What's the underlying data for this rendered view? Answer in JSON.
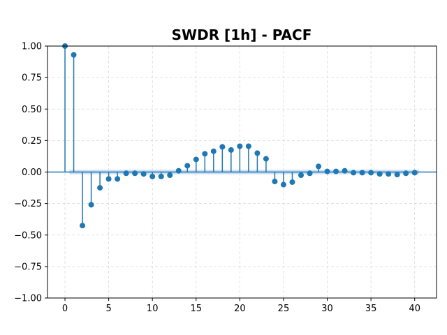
{
  "chart_data": {
    "type": "stem",
    "title": "SWDR [1h] - PACF",
    "xlabel": "",
    "ylabel": "",
    "xlim": [
      -2,
      42.5
    ],
    "ylim": [
      -1.0,
      1.0
    ],
    "xticks": [
      0,
      5,
      10,
      15,
      20,
      25,
      30,
      35,
      40
    ],
    "yticks": [
      -1.0,
      -0.75,
      -0.5,
      -0.25,
      0.0,
      0.25,
      0.5,
      0.75,
      1.0
    ],
    "xtick_labels": [
      "0",
      "5",
      "10",
      "15",
      "20",
      "25",
      "30",
      "35",
      "40"
    ],
    "ytick_labels": [
      "−1.00",
      "−0.75",
      "−0.50",
      "−0.25",
      "0.00",
      "0.25",
      "0.50",
      "0.75",
      "1.00"
    ],
    "grid": true,
    "confidence_band": 0.018,
    "colors": {
      "stem": "#1f77b4",
      "band": "#c8dcee",
      "grid": "#d9d9d9"
    },
    "series": [
      {
        "x": [
          0,
          1,
          2,
          3,
          4,
          5,
          6,
          7,
          8,
          9,
          10,
          11,
          12,
          13,
          14,
          15,
          16,
          17,
          18,
          19,
          20,
          21,
          22,
          23,
          24,
          25,
          26,
          27,
          28,
          29,
          30,
          31,
          32,
          33,
          34,
          35,
          36,
          37,
          38,
          39,
          40
        ],
        "values": [
          1.0,
          0.93,
          -0.425,
          -0.26,
          -0.125,
          -0.055,
          -0.055,
          -0.01,
          -0.01,
          -0.015,
          -0.035,
          -0.035,
          -0.025,
          0.01,
          0.05,
          0.1,
          0.145,
          0.165,
          0.2,
          0.175,
          0.205,
          0.205,
          0.15,
          0.105,
          -0.075,
          -0.1,
          -0.08,
          -0.025,
          -0.01,
          0.045,
          0.005,
          0.005,
          0.01,
          -0.005,
          -0.005,
          -0.005,
          -0.015,
          -0.015,
          -0.02,
          -0.01,
          -0.005
        ]
      }
    ]
  }
}
